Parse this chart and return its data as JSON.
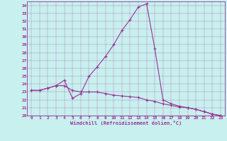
{
  "xlabel": "Windchill (Refroidissement éolien,°C)",
  "background_color": "#c8f0ee",
  "line_color": "#993399",
  "xlim": [
    -0.5,
    23.5
  ],
  "ylim": [
    20,
    34.5
  ],
  "xticks": [
    0,
    1,
    2,
    3,
    4,
    5,
    6,
    7,
    8,
    9,
    10,
    11,
    12,
    13,
    14,
    15,
    16,
    17,
    18,
    19,
    20,
    21,
    22,
    23
  ],
  "yticks": [
    20,
    21,
    22,
    23,
    24,
    25,
    26,
    27,
    28,
    29,
    30,
    31,
    32,
    33,
    34
  ],
  "line1_x": [
    0,
    1,
    2,
    3,
    4,
    5,
    6,
    7,
    8,
    9,
    10,
    11,
    12,
    13,
    14,
    15,
    16,
    17,
    18,
    19,
    20,
    21,
    22,
    23
  ],
  "line1_y": [
    23.2,
    23.2,
    23.5,
    23.8,
    24.5,
    22.2,
    22.8,
    25.0,
    26.2,
    27.5,
    29.0,
    30.8,
    32.2,
    33.8,
    34.2,
    28.5,
    22.0,
    21.5,
    21.2,
    21.0,
    20.8,
    20.5,
    20.2,
    20.0
  ],
  "line2_x": [
    0,
    1,
    2,
    3,
    4,
    5,
    6,
    7,
    8,
    9,
    10,
    11,
    12,
    13,
    14,
    15,
    16,
    17,
    18,
    19,
    20,
    21,
    22,
    23
  ],
  "line2_y": [
    23.2,
    23.2,
    23.5,
    23.8,
    23.8,
    23.2,
    23.0,
    23.0,
    23.0,
    22.8,
    22.6,
    22.5,
    22.4,
    22.3,
    22.0,
    21.8,
    21.5,
    21.3,
    21.1,
    21.0,
    20.8,
    20.5,
    20.2,
    20.0
  ]
}
